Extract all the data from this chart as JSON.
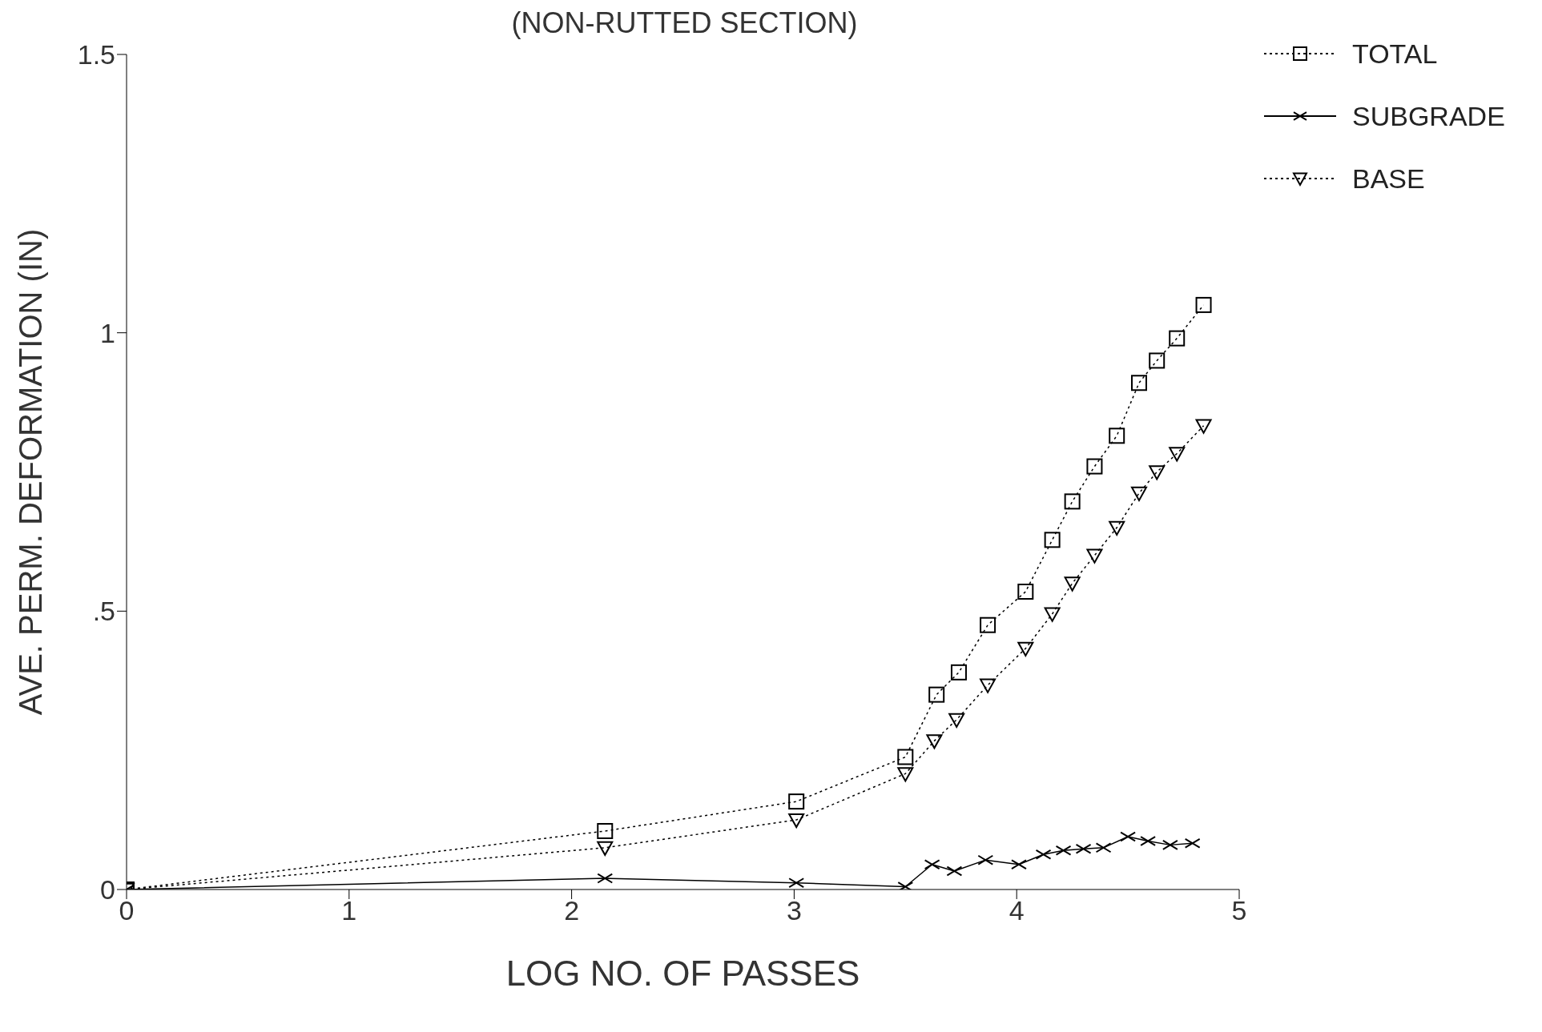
{
  "chart_data": {
    "type": "line",
    "title": "(NON-RUTTED SECTION)",
    "xlabel": "LOG NO. OF PASSES",
    "ylabel": "AVE. PERM. DEFORMATION (IN)",
    "xlim": [
      0,
      5
    ],
    "xticks": [
      0,
      1,
      2,
      3,
      4,
      5
    ],
    "ylim": [
      0,
      1.5
    ],
    "yticks": [
      0,
      {
        "value": 0.5,
        "label": ".5"
      },
      1,
      1.5
    ],
    "grid": false,
    "legend": "top right",
    "series": [
      {
        "name": "TOTAL",
        "color": "#000000",
        "marker": "square",
        "line_style": "dotted",
        "x": [
          0,
          2.15,
          3.01,
          3.5,
          3.64,
          3.74,
          3.87,
          4.04,
          4.16,
          4.25,
          4.35,
          4.45,
          4.55,
          4.63,
          4.72,
          4.84
        ],
        "values": [
          0,
          0.105,
          0.158,
          0.238,
          0.35,
          0.39,
          0.475,
          0.535,
          0.628,
          0.697,
          0.76,
          0.815,
          0.91,
          0.95,
          0.99,
          1.05
        ]
      },
      {
        "name": "SUBGRADE",
        "color": "#000000",
        "marker": "cross",
        "line_style": "solid",
        "x": [
          0,
          2.15,
          3.01,
          3.5,
          3.62,
          3.72,
          3.86,
          4.01,
          4.12,
          4.21,
          4.3,
          4.39,
          4.5,
          4.59,
          4.69,
          4.79
        ],
        "values": [
          0,
          0.02,
          0.012,
          0.005,
          0.045,
          0.033,
          0.053,
          0.045,
          0.063,
          0.07,
          0.073,
          0.075,
          0.095,
          0.087,
          0.08,
          0.083
        ]
      },
      {
        "name": "BASE",
        "color": "#000000",
        "marker": "triangle",
        "line_style": "dotted",
        "x": [
          0,
          2.15,
          3.01,
          3.5,
          3.63,
          3.73,
          3.87,
          4.04,
          4.16,
          4.25,
          4.35,
          4.45,
          4.55,
          4.63,
          4.72,
          4.84
        ],
        "values": [
          0,
          0.075,
          0.125,
          0.208,
          0.267,
          0.305,
          0.367,
          0.433,
          0.495,
          0.55,
          0.6,
          0.65,
          0.712,
          0.75,
          0.783,
          0.833
        ]
      }
    ]
  }
}
